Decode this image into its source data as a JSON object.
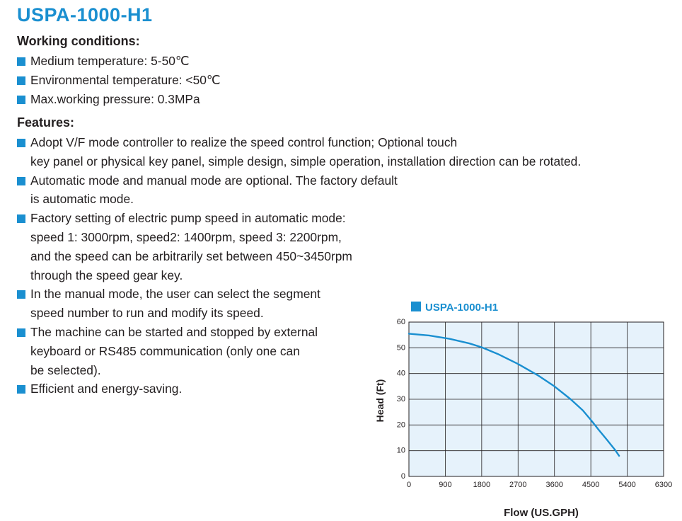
{
  "title": "USPA-1000-H1",
  "working_conditions": {
    "heading": "Working conditions:",
    "items": [
      {
        "lines": [
          "Medium temperature: 5-50℃"
        ]
      },
      {
        "lines": [
          "Environmental temperature: <50℃"
        ]
      },
      {
        "lines": [
          "Max.working pressure: 0.3MPa"
        ]
      }
    ]
  },
  "features": {
    "heading": "Features:",
    "items": [
      {
        "lines": [
          "Adopt V/F mode controller to realize the speed control function; Optional touch",
          "key panel or physical key panel, simple design, simple operation, installation direction can be rotated."
        ]
      },
      {
        "lines": [
          "Automatic mode and manual mode are optional. The factory default",
          "is automatic mode."
        ]
      },
      {
        "lines": [
          "Factory setting of electric pump speed in automatic mode:",
          "speed 1: 3000rpm, speed2: 1400rpm, speed 3: 2200rpm,",
          "and the speed can be arbitrarily set between 450~3450rpm",
          "through the speed gear key."
        ]
      },
      {
        "lines": [
          "In the manual mode, the user can select the segment",
          "speed number to run and modify its speed."
        ]
      },
      {
        "lines": [
          "The machine can be started and stopped by external",
          "keyboard or RS485 communication (only one can",
          "be selected)."
        ]
      },
      {
        "lines": [
          "Efficient and energy-saving."
        ]
      }
    ]
  },
  "colors": {
    "accent": "#1a8fd0",
    "plot_bg": "#e6f2fb",
    "grid": "#231f20",
    "curve": "#1a8fd0"
  },
  "chart_data": {
    "type": "line",
    "title": "USPA-1000-H1",
    "xlabel": "Flow (US.GPH)",
    "ylabel": "Head (Ft)",
    "xlim": [
      0,
      6300
    ],
    "ylim": [
      0,
      60
    ],
    "xticks": [
      0,
      900,
      1800,
      2700,
      3600,
      4500,
      5400,
      6300
    ],
    "yticks": [
      0,
      10,
      20,
      30,
      40,
      50,
      60
    ],
    "grid": true,
    "series": [
      {
        "name": "USPA-1000-H1",
        "x": [
          0,
          500,
          1000,
          1500,
          1800,
          2200,
          2700,
          3200,
          3600,
          4000,
          4300,
          4500,
          4700,
          4900,
          5100,
          5200
        ],
        "y": [
          55.5,
          54.8,
          53.5,
          51.7,
          50.2,
          47.6,
          43.7,
          39.2,
          35.0,
          30.0,
          25.7,
          22.0,
          18.0,
          14.2,
          10.3,
          8.0
        ]
      }
    ]
  }
}
